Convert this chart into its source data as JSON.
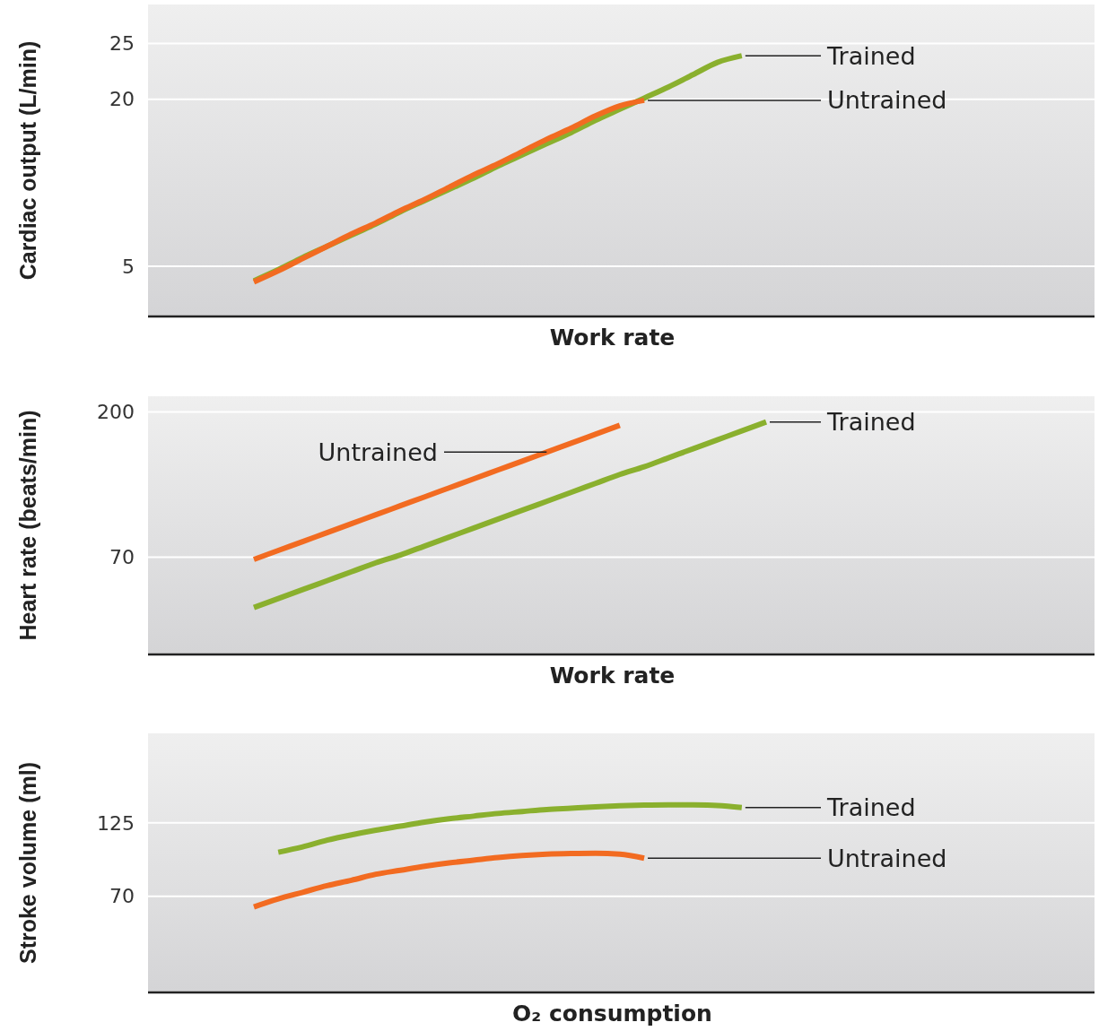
{
  "chart_data": [
    {
      "type": "line",
      "ylabel": "Cardiac output (L/min)",
      "xlabel": "Work rate",
      "categories": [
        null,
        null,
        null,
        null,
        null,
        null,
        null,
        null,
        null,
        null,
        null,
        null,
        null,
        null,
        null,
        null,
        null,
        null,
        null,
        null,
        null,
        null
      ],
      "ylim": [
        0.5,
        28.5
      ],
      "yticks": [
        5,
        20,
        25
      ],
      "grid": "y",
      "series": [
        {
          "name": "Trained",
          "color": "#8ab02e",
          "values": [
            3.7,
            4.7,
            5.8,
            6.8,
            7.8,
            8.8,
            9.9,
            10.9,
            11.9,
            12.9,
            14.0,
            15.0,
            16.0,
            17.0,
            18.1,
            19.1,
            20.1,
            21.1,
            22.2,
            23.3,
            23.9,
            null
          ]
        },
        {
          "name": "Untrained",
          "color": "#f26b21",
          "values": [
            3.6,
            4.6,
            5.7,
            6.8,
            7.9,
            8.9,
            10.0,
            11.0,
            12.1,
            13.2,
            14.2,
            15.3,
            16.4,
            17.4,
            18.5,
            19.4,
            19.9,
            null,
            null,
            null,
            null,
            null
          ]
        }
      ]
    },
    {
      "type": "line",
      "ylabel": "Heart rate (beats/min)",
      "xlabel": "Work rate",
      "categories": [
        null,
        null,
        null,
        null,
        null,
        null,
        null,
        null,
        null,
        null,
        null,
        null,
        null,
        null,
        null,
        null,
        null,
        null,
        null,
        null,
        null,
        null
      ],
      "ylim": [
        -17,
        214
      ],
      "yticks": [
        70,
        200
      ],
      "grid": "y",
      "series": [
        {
          "name": "Untrained",
          "color": "#f26b21",
          "values": [
            68,
            76,
            84,
            92,
            100,
            108,
            116,
            124,
            132,
            140,
            148,
            156,
            164,
            172,
            180,
            188,
            null,
            null,
            null,
            null,
            null,
            null
          ]
        },
        {
          "name": "Trained",
          "color": "#8ab02e",
          "values": [
            25,
            33,
            41,
            49,
            57,
            65,
            72,
            80,
            88,
            96,
            104,
            112,
            120,
            128,
            136,
            144,
            151,
            159,
            167,
            175,
            183,
            191
          ]
        }
      ]
    },
    {
      "type": "line",
      "ylabel": "Stroke volume (ml)",
      "xlabel": "O₂ consumption",
      "categories": [
        null,
        null,
        null,
        null,
        null,
        null,
        null,
        null,
        null,
        null,
        null,
        null,
        null,
        null,
        null,
        null,
        null,
        null,
        null,
        null,
        null,
        null
      ],
      "ylim": [
        -2,
        192
      ],
      "yticks": [
        70,
        125
      ],
      "grid": "y",
      "series": [
        {
          "name": "Trained",
          "color": "#8ab02e",
          "values": [
            null,
            103,
            107,
            112,
            116,
            119.5,
            122.5,
            125.5,
            128,
            130,
            132,
            133.5,
            135,
            136,
            137,
            137.8,
            138.3,
            138.5,
            138.4,
            138,
            136.5,
            null
          ]
        },
        {
          "name": "Untrained",
          "color": "#f26b21",
          "values": [
            62,
            68,
            73,
            78,
            82,
            86.5,
            89.5,
            92.5,
            95,
            97,
            99,
            100.5,
            101.5,
            102,
            102.2,
            101.5,
            98.5,
            null,
            null,
            null,
            null,
            null
          ]
        }
      ]
    }
  ]
}
